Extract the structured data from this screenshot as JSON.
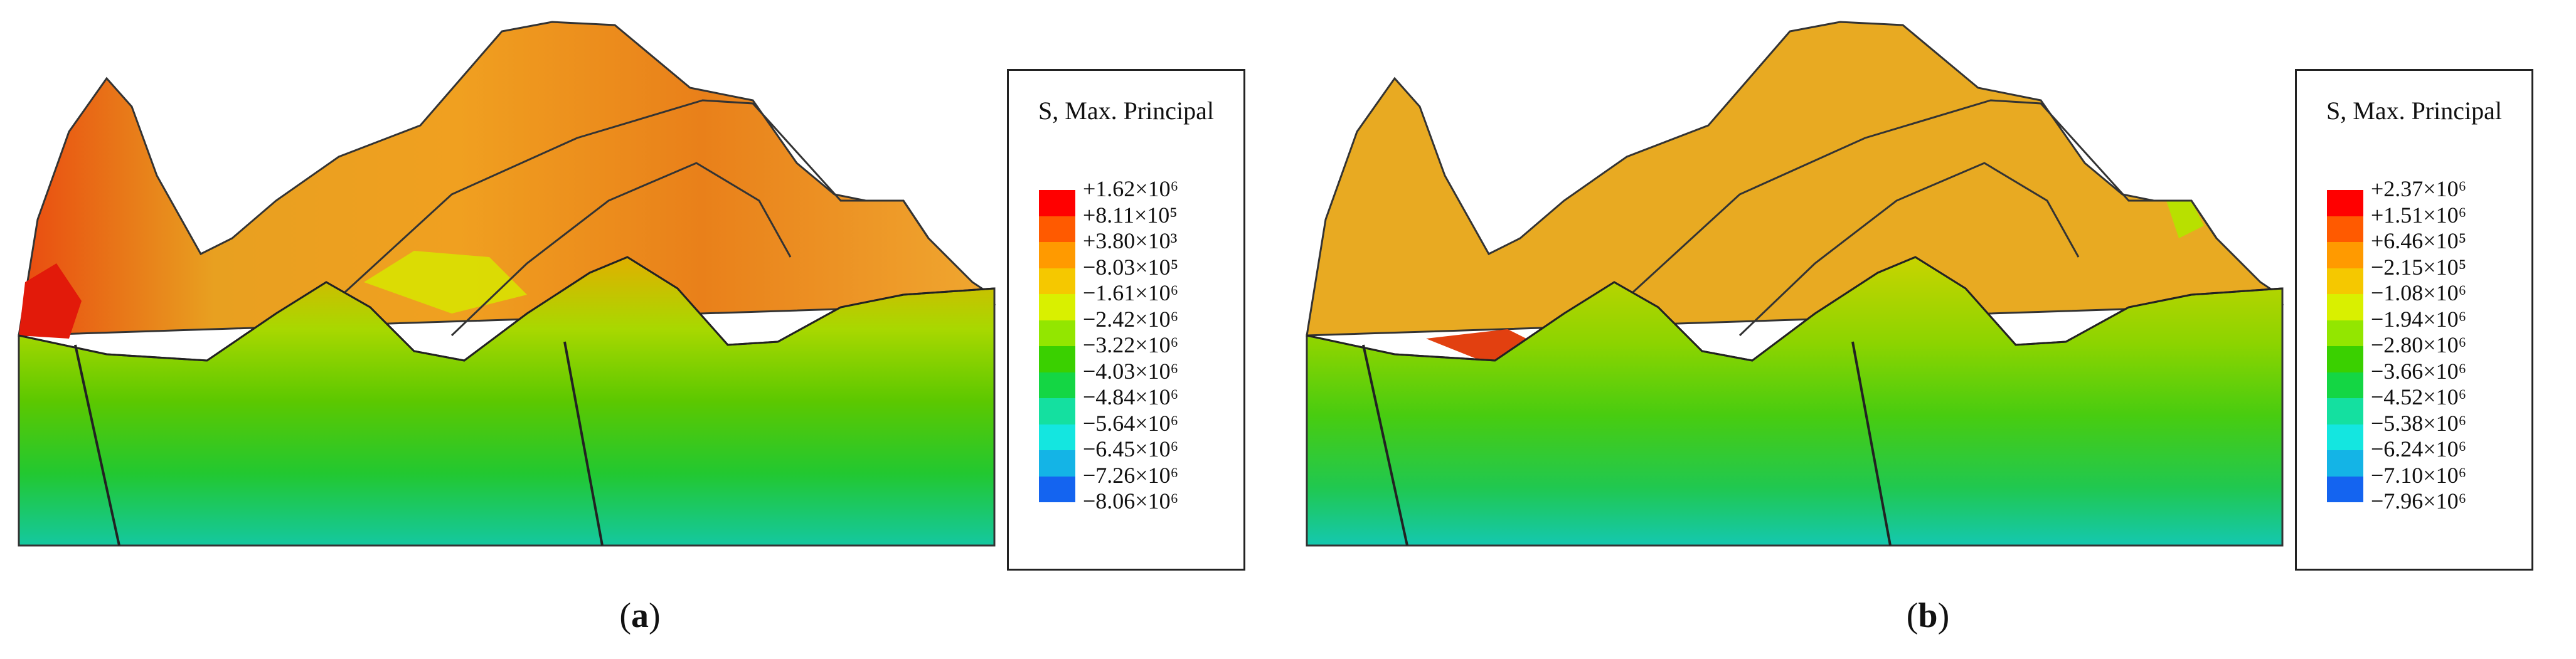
{
  "panels": [
    {
      "caption_open": "(",
      "caption_letter": "a",
      "caption_close": ")",
      "legend_title": "S, Max. Principal",
      "ticks": [
        "+1.62×10⁶",
        "+8.11×10⁵",
        "+3.80×10³",
        "−8.03×10⁵",
        "−1.61×10⁶",
        "−2.42×10⁶",
        "−3.22×10⁶",
        "−4.03×10⁶",
        "−4.84×10⁶",
        "−5.64×10⁶",
        "−6.45×10⁶",
        "−7.26×10⁶",
        "−8.06×10⁶"
      ]
    },
    {
      "caption_open": "(",
      "caption_letter": "b",
      "caption_close": ")",
      "legend_title": "S, Max. Principal",
      "ticks": [
        "+2.37×10⁶",
        "+1.51×10⁶",
        "+6.46×10⁵",
        "−2.15×10⁵",
        "−1.08×10⁶",
        "−1.94×10⁶",
        "−2.80×10⁶",
        "−3.66×10⁶",
        "−4.52×10⁶",
        "−5.38×10⁶",
        "−6.24×10⁶",
        "−7.10×10⁶",
        "−7.96×10⁶"
      ]
    }
  ],
  "colormap": [
    "#ff0000",
    "#ff5a00",
    "#ff9a00",
    "#f5c800",
    "#d9f000",
    "#93e600",
    "#3ad000",
    "#14d644",
    "#14e0a0",
    "#14e6e0",
    "#14b4e6",
    "#1464f0",
    "#1414ff"
  ]
}
